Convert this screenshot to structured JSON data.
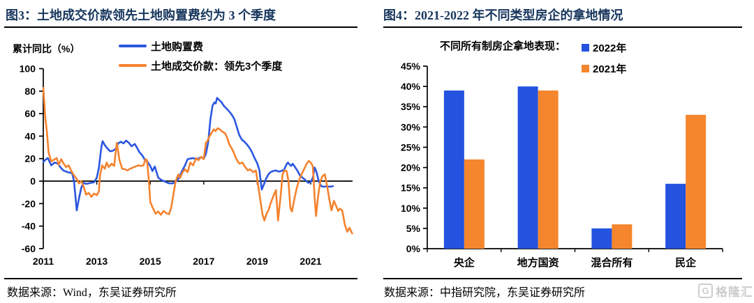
{
  "colors": {
    "title_navy": "#17365D",
    "line_blue": "#2B57DF",
    "line_orange": "#F5822D",
    "bar_blue": "#2453DF",
    "bar_orange": "#F5862D",
    "rule_black": "#000000",
    "watermark_gray": "#cdcdcd"
  },
  "left_panel": {
    "figure_label": "图3：",
    "title": "土地成交价款领先土地购置费约为 3 个季度",
    "source": "数据来源：Wind，东吴证券研究所"
  },
  "right_panel": {
    "figure_label": "图4：",
    "title": "2021-2022 年不同类型房企的拿地情况",
    "inline_title": "不同所有制房企拿地表现：",
    "source": "数据来源：中指研究院，东吴证券研究所"
  },
  "watermark": {
    "icon_letter": "G",
    "text": "格隆汇"
  },
  "chart_data": [
    {
      "type": "line",
      "title": "土地成交价款领先土地购置费约为 3 个季度",
      "ylabel": "累计同比（%）",
      "xlabel": "",
      "ylim": [
        -60,
        100
      ],
      "y_ticks": [
        100,
        80,
        60,
        40,
        20,
        0,
        -20,
        -40,
        -60
      ],
      "xlim": [
        2011,
        2022.6
      ],
      "x_ticks": [
        2011,
        2013,
        2015,
        2017,
        2019,
        2021
      ],
      "grid": false,
      "legend_position": "top",
      "series": [
        {
          "name": "土地购置费",
          "color": "#2B57DF",
          "points": [
            [
              2011.0,
              17
            ],
            [
              2011.08,
              19
            ],
            [
              2011.17,
              20.5
            ],
            [
              2011.3,
              14
            ],
            [
              2011.42,
              16.5
            ],
            [
              2011.55,
              15.5
            ],
            [
              2011.65,
              12
            ],
            [
              2011.75,
              9.5
            ],
            [
              2011.9,
              8
            ],
            [
              2012.0,
              7.5
            ],
            [
              2012.08,
              7
            ],
            [
              2012.15,
              0
            ],
            [
              2012.25,
              -26
            ],
            [
              2012.33,
              -16
            ],
            [
              2012.42,
              -6
            ],
            [
              2012.5,
              -1.5
            ],
            [
              2012.6,
              -2.5
            ],
            [
              2012.7,
              -2
            ],
            [
              2012.8,
              -1.5
            ],
            [
              2012.9,
              -1
            ],
            [
              2013.0,
              3
            ],
            [
              2013.08,
              12
            ],
            [
              2013.17,
              30
            ],
            [
              2013.22,
              35.5
            ],
            [
              2013.3,
              32
            ],
            [
              2013.4,
              29
            ],
            [
              2013.5,
              26.5
            ],
            [
              2013.6,
              27
            ],
            [
              2013.7,
              28.5
            ],
            [
              2013.8,
              33.5
            ],
            [
              2013.9,
              35
            ],
            [
              2014.0,
              33.5
            ],
            [
              2014.1,
              36
            ],
            [
              2014.2,
              34
            ],
            [
              2014.3,
              31
            ],
            [
              2014.42,
              33
            ],
            [
              2014.5,
              30
            ],
            [
              2014.6,
              25.5
            ],
            [
              2014.7,
              23
            ],
            [
              2014.8,
              19
            ],
            [
              2014.9,
              17
            ],
            [
              2015.0,
              13.5
            ],
            [
              2015.08,
              9
            ],
            [
              2015.17,
              13
            ],
            [
              2015.3,
              3
            ],
            [
              2015.42,
              1
            ],
            [
              2015.55,
              -0.5
            ],
            [
              2015.7,
              -2
            ],
            [
              2015.85,
              -2
            ],
            [
              2015.95,
              -0.5
            ],
            [
              2016.08,
              3
            ],
            [
              2016.17,
              8
            ],
            [
              2016.3,
              14
            ],
            [
              2016.4,
              19.5
            ],
            [
              2016.5,
              20
            ],
            [
              2016.6,
              20.5
            ],
            [
              2016.7,
              19.5
            ],
            [
              2016.8,
              20
            ],
            [
              2016.9,
              21.5
            ],
            [
              2017.0,
              20
            ],
            [
              2017.08,
              24
            ],
            [
              2017.17,
              35
            ],
            [
              2017.25,
              55
            ],
            [
              2017.33,
              67
            ],
            [
              2017.4,
              70
            ],
            [
              2017.45,
              69
            ],
            [
              2017.5,
              74
            ],
            [
              2017.58,
              72
            ],
            [
              2017.67,
              70
            ],
            [
              2017.75,
              67
            ],
            [
              2017.85,
              64.5
            ],
            [
              2017.95,
              62
            ],
            [
              2018.05,
              59
            ],
            [
              2018.15,
              55
            ],
            [
              2018.25,
              47
            ],
            [
              2018.33,
              41
            ],
            [
              2018.42,
              37
            ],
            [
              2018.5,
              35.5
            ],
            [
              2018.6,
              33
            ],
            [
              2018.7,
              30
            ],
            [
              2018.8,
              26
            ],
            [
              2018.9,
              20.5
            ],
            [
              2019.0,
              16
            ],
            [
              2019.08,
              10
            ],
            [
              2019.17,
              -7.5
            ],
            [
              2019.25,
              -3
            ],
            [
              2019.33,
              2
            ],
            [
              2019.42,
              6
            ],
            [
              2019.5,
              8
            ],
            [
              2019.6,
              9
            ],
            [
              2019.7,
              9.5
            ],
            [
              2019.8,
              8.5
            ],
            [
              2019.9,
              9
            ],
            [
              2020.0,
              10
            ],
            [
              2020.1,
              15
            ],
            [
              2020.15,
              16.5
            ],
            [
              2020.2,
              15
            ],
            [
              2020.27,
              13.5
            ],
            [
              2020.33,
              15.5
            ],
            [
              2020.4,
              13
            ],
            [
              2020.5,
              9.5
            ],
            [
              2020.6,
              5
            ],
            [
              2020.7,
              3
            ],
            [
              2020.8,
              1
            ],
            [
              2020.9,
              -1.5
            ],
            [
              2021.0,
              -1
            ],
            [
              2021.08,
              3
            ],
            [
              2021.15,
              12
            ],
            [
              2021.22,
              8
            ],
            [
              2021.3,
              0
            ],
            [
              2021.4,
              -4.5
            ],
            [
              2021.5,
              -5
            ],
            [
              2021.6,
              -4.5
            ],
            [
              2021.7,
              -5
            ],
            [
              2021.83,
              -4.5
            ]
          ]
        },
        {
          "name": "土地成交价款：领先3个季度",
          "color": "#F5822D",
          "points": [
            [
              2011.0,
              83
            ],
            [
              2011.08,
              55
            ],
            [
              2011.13,
              45
            ],
            [
              2011.2,
              25
            ],
            [
              2011.3,
              17.5
            ],
            [
              2011.4,
              19
            ],
            [
              2011.5,
              20.5
            ],
            [
              2011.58,
              14.5
            ],
            [
              2011.67,
              19.5
            ],
            [
              2011.75,
              16
            ],
            [
              2011.85,
              12.5
            ],
            [
              2011.95,
              14
            ],
            [
              2012.05,
              9
            ],
            [
              2012.15,
              5
            ],
            [
              2012.25,
              2
            ],
            [
              2012.33,
              -2
            ],
            [
              2012.42,
              0
            ],
            [
              2012.5,
              -4
            ],
            [
              2012.6,
              -12
            ],
            [
              2012.7,
              -10.5
            ],
            [
              2012.8,
              -14
            ],
            [
              2012.9,
              -11
            ],
            [
              2013.0,
              -12.5
            ],
            [
              2013.08,
              -9
            ],
            [
              2013.12,
              5
            ],
            [
              2013.2,
              14
            ],
            [
              2013.3,
              11
            ],
            [
              2013.37,
              16.5
            ],
            [
              2013.45,
              12.5
            ],
            [
              2013.55,
              15.5
            ],
            [
              2013.65,
              13.5
            ],
            [
              2013.75,
              34
            ],
            [
              2013.85,
              18.5
            ],
            [
              2013.95,
              11
            ],
            [
              2014.05,
              10.5
            ],
            [
              2014.15,
              9.5
            ],
            [
              2014.25,
              11
            ],
            [
              2014.4,
              12.5
            ],
            [
              2014.55,
              14
            ],
            [
              2014.65,
              13.5
            ],
            [
              2014.75,
              14
            ],
            [
              2014.82,
              19.5
            ],
            [
              2014.88,
              18.5
            ],
            [
              2014.95,
              0
            ],
            [
              2015.0,
              -18.5
            ],
            [
              2015.1,
              -24
            ],
            [
              2015.2,
              -29
            ],
            [
              2015.3,
              -27
            ],
            [
              2015.4,
              -30
            ],
            [
              2015.5,
              -26.5
            ],
            [
              2015.6,
              -28.5
            ],
            [
              2015.7,
              -29.5
            ],
            [
              2015.78,
              -24
            ],
            [
              2015.88,
              -10
            ],
            [
              2015.95,
              0
            ],
            [
              2016.05,
              6
            ],
            [
              2016.12,
              3
            ],
            [
              2016.2,
              7.5
            ],
            [
              2016.3,
              10.5
            ],
            [
              2016.4,
              8
            ],
            [
              2016.5,
              16.5
            ],
            [
              2016.6,
              14
            ],
            [
              2016.72,
              20.5
            ],
            [
              2016.8,
              18.5
            ],
            [
              2016.9,
              21.5
            ],
            [
              2017.0,
              19.5
            ],
            [
              2017.08,
              34
            ],
            [
              2017.15,
              36
            ],
            [
              2017.22,
              40
            ],
            [
              2017.3,
              43
            ],
            [
              2017.37,
              46
            ],
            [
              2017.44,
              44.5
            ],
            [
              2017.52,
              47
            ],
            [
              2017.6,
              46
            ],
            [
              2017.7,
              44
            ],
            [
              2017.8,
              42.5
            ],
            [
              2017.87,
              39
            ],
            [
              2017.95,
              33
            ],
            [
              2018.05,
              29
            ],
            [
              2018.13,
              25
            ],
            [
              2018.2,
              20.5
            ],
            [
              2018.33,
              15.5
            ],
            [
              2018.45,
              16.5
            ],
            [
              2018.55,
              12.5
            ],
            [
              2018.65,
              9.5
            ],
            [
              2018.73,
              10.5
            ],
            [
              2018.85,
              8
            ],
            [
              2018.95,
              9.5
            ],
            [
              2019.05,
              -6
            ],
            [
              2019.13,
              -19
            ],
            [
              2019.2,
              -30
            ],
            [
              2019.27,
              -35
            ],
            [
              2019.35,
              -29
            ],
            [
              2019.42,
              -26
            ],
            [
              2019.5,
              -20
            ],
            [
              2019.6,
              -13.5
            ],
            [
              2019.7,
              -8
            ],
            [
              2019.78,
              -35
            ],
            [
              2019.88,
              -12
            ],
            [
              2019.95,
              6
            ],
            [
              2020.02,
              9.5
            ],
            [
              2020.1,
              9
            ],
            [
              2020.17,
              0
            ],
            [
              2020.24,
              -24
            ],
            [
              2020.3,
              -27
            ],
            [
              2020.38,
              -17
            ],
            [
              2020.48,
              -6
            ],
            [
              2020.6,
              3
            ],
            [
              2020.72,
              9
            ],
            [
              2020.85,
              15.5
            ],
            [
              2020.93,
              18
            ],
            [
              2021.02,
              16
            ],
            [
              2021.08,
              13
            ],
            [
              2021.15,
              -15
            ],
            [
              2021.2,
              -31
            ],
            [
              2021.28,
              -13
            ],
            [
              2021.36,
              0
            ],
            [
              2021.45,
              4.5
            ],
            [
              2021.53,
              6
            ],
            [
              2021.62,
              -5
            ],
            [
              2021.7,
              -16.5
            ],
            [
              2021.78,
              -26
            ],
            [
              2021.87,
              -17.5
            ],
            [
              2021.95,
              -22
            ],
            [
              2022.03,
              -26.5
            ],
            [
              2022.1,
              -24.5
            ],
            [
              2022.18,
              -26
            ],
            [
              2022.28,
              -39
            ],
            [
              2022.37,
              -45
            ],
            [
              2022.45,
              -41.5
            ],
            [
              2022.55,
              -46.5
            ]
          ]
        }
      ]
    },
    {
      "type": "bar",
      "title": "不同所有制房企拿地表现：",
      "categories": [
        "央企",
        "地方国资",
        "混合所有",
        "民企"
      ],
      "series": [
        {
          "name": "2022年",
          "color": "#2453DF",
          "values": [
            39,
            40,
            5,
            16
          ]
        },
        {
          "name": "2021年",
          "color": "#F5862D",
          "values": [
            22,
            39,
            6,
            33
          ]
        }
      ],
      "ylim": [
        0,
        45
      ],
      "y_ticks": [
        0,
        5,
        10,
        15,
        20,
        25,
        30,
        35,
        40,
        45
      ],
      "y_tick_format": "percent",
      "grid": false,
      "legend_position": "top-right"
    }
  ]
}
